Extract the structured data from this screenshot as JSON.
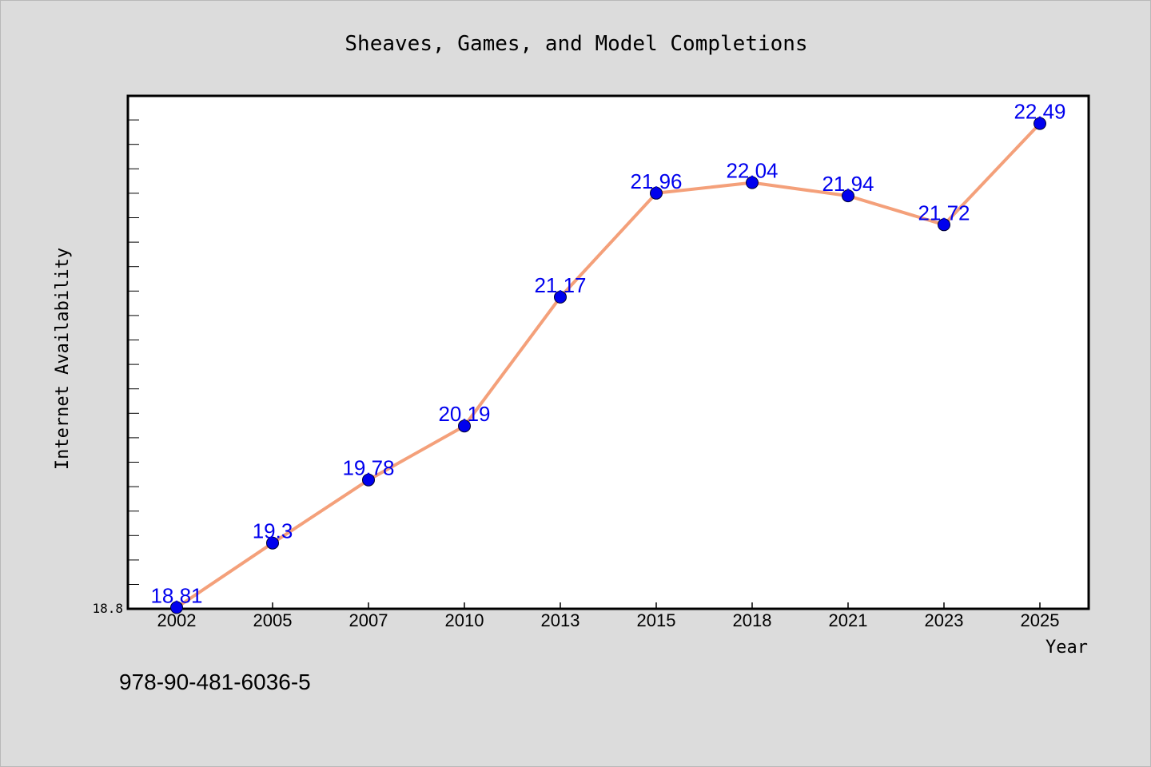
{
  "chart_data": {
    "type": "line",
    "title": "Sheaves, Games, and Model Completions",
    "xlabel": "Year",
    "ylabel": "Internet Availability",
    "categories": [
      "2002",
      "2005",
      "2007",
      "2010",
      "2013",
      "2015",
      "2018",
      "2021",
      "2023",
      "2025"
    ],
    "series": [
      {
        "values": [
          18.81,
          19.3,
          19.78,
          20.19,
          21.17,
          21.96,
          22.04,
          21.94,
          21.72,
          22.49
        ],
        "labels": [
          "18.81",
          "19.3",
          "19.78",
          "20.19",
          "21.17",
          "21.96",
          "22.04",
          "21.94",
          "21.72",
          "22.49"
        ]
      }
    ],
    "ylim": [
      18.8,
      22.7
    ],
    "yticks": [
      "18.8"
    ],
    "grid": false,
    "legend": "none",
    "colors": {
      "line": "#f4a07a",
      "marker": "#0000ee",
      "data_label": "#0000ee",
      "plot_bg": "#ffffff",
      "page_bg": "#dcdcdc"
    }
  },
  "footnote": "978-90-481-6036-5"
}
